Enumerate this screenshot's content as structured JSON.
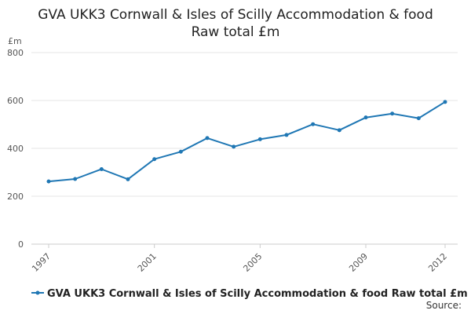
{
  "chart_data": {
    "type": "line",
    "title_lines": [
      "GVA UKK3 Cornwall & Isles of Scilly Accommodation & food",
      "Raw total £m"
    ],
    "ylabel": "£m",
    "xlabel": "",
    "ylim": [
      0,
      800
    ],
    "yticks": [
      0,
      200,
      400,
      600,
      800
    ],
    "xticks": [
      1997,
      2001,
      2005,
      2009,
      2012
    ],
    "grid": true,
    "legend_position": "bottom-left",
    "series": [
      {
        "name": "GVA UKK3 Cornwall & Isles of Scilly Accommodation & food Raw total £m",
        "color": "#1f77b4",
        "x": [
          1997,
          1998,
          1999,
          2000,
          2001,
          2002,
          2003,
          2004,
          2005,
          2006,
          2007,
          2008,
          2009,
          2010,
          2011,
          2012
        ],
        "values": [
          262,
          272,
          313,
          271,
          355,
          386,
          443,
          407,
          438,
          456,
          501,
          476,
          529,
          545,
          526,
          594
        ]
      }
    ]
  },
  "footer": {
    "source_label": "Source:"
  }
}
